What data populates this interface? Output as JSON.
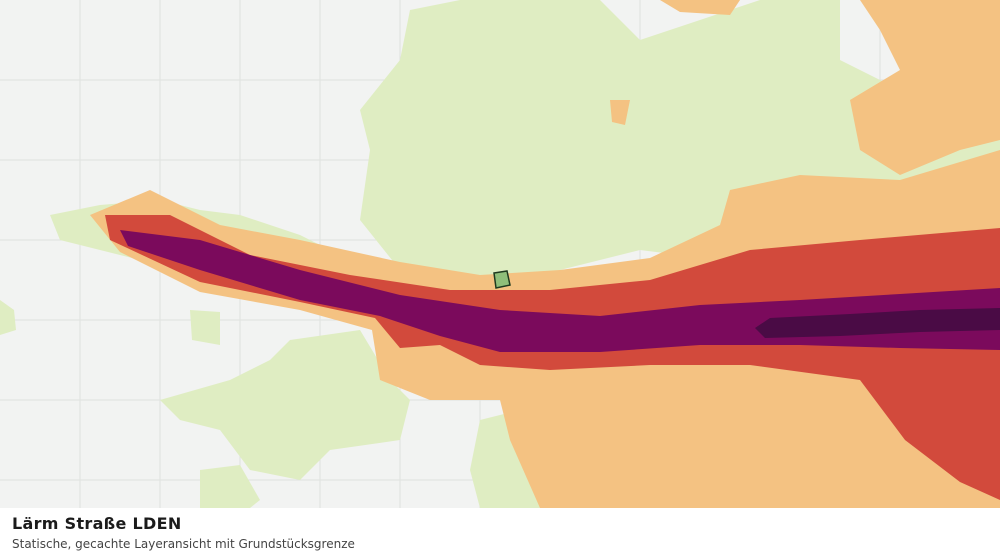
{
  "caption": {
    "title": "Lärm Straße LDEN",
    "subtitle": "Statische, gecachte Layeransicht mit Grundstücksgrenze"
  }
}
